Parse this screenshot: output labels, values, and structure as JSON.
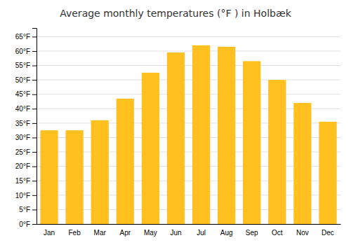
{
  "chart_data": {
    "type": "bar",
    "title": "Average monthly temperatures (°F ) in Holbæk",
    "categories": [
      "Jan",
      "Feb",
      "Mar",
      "Apr",
      "May",
      "Jun",
      "Jul",
      "Aug",
      "Sep",
      "Oct",
      "Nov",
      "Dec"
    ],
    "values": [
      32.5,
      32.5,
      36.0,
      43.5,
      52.5,
      59.5,
      62.0,
      61.5,
      56.5,
      50.0,
      42.0,
      35.5
    ],
    "color": "#FFC020",
    "ylim": [
      0,
      68
    ],
    "yticks": [
      {
        "value": 0,
        "label": "0°F"
      },
      {
        "value": 5,
        "label": "5°F"
      },
      {
        "value": 10,
        "label": "10°F"
      },
      {
        "value": 15,
        "label": "15°F"
      },
      {
        "value": 20,
        "label": "20°F"
      },
      {
        "value": 25,
        "label": "25°F"
      },
      {
        "value": 30,
        "label": "30°F"
      },
      {
        "value": 35,
        "label": "35°F"
      },
      {
        "value": 40,
        "label": "40°F"
      },
      {
        "value": 45,
        "label": "45°F"
      },
      {
        "value": 50,
        "label": "50°F"
      },
      {
        "value": 55,
        "label": "55°F"
      },
      {
        "value": 60,
        "label": "60°F"
      },
      {
        "value": 65,
        "label": "65°F"
      }
    ],
    "grid": true
  }
}
